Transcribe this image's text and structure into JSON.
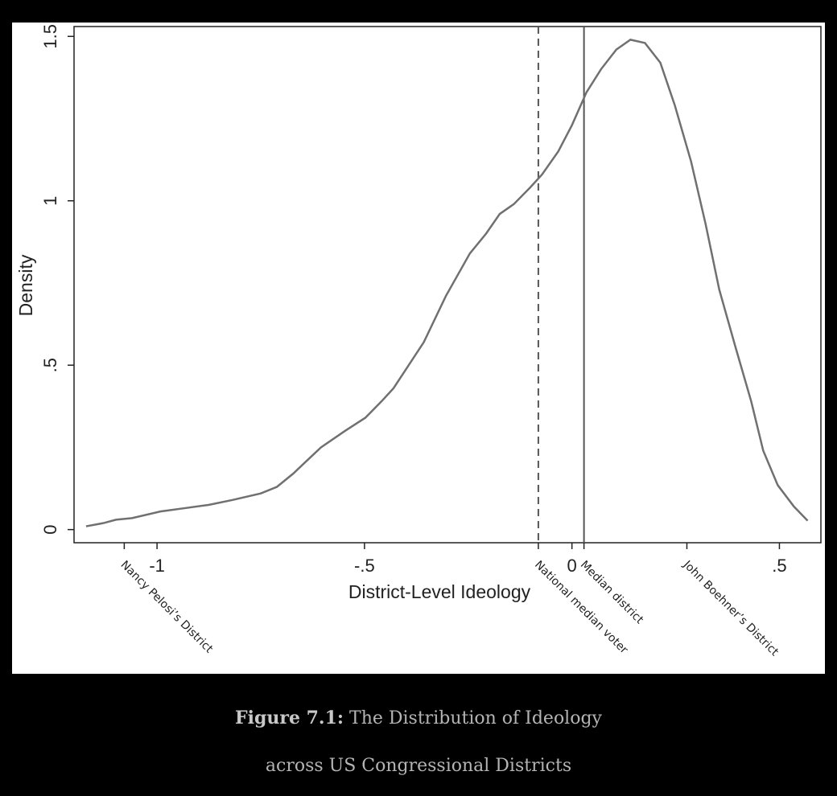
{
  "chart_data": {
    "type": "line",
    "xlabel": "District-Level Ideology",
    "ylabel": "Density",
    "x": [
      -1.171,
      -1.128,
      -1.099,
      -1.06,
      -0.992,
      -0.934,
      -0.876,
      -0.818,
      -0.75,
      -0.711,
      -0.672,
      -0.605,
      -0.547,
      -0.498,
      -0.459,
      -0.43,
      -0.357,
      -0.304,
      -0.246,
      -0.207,
      -0.174,
      -0.14,
      -0.101,
      -0.072,
      -0.033,
      0,
      0.035,
      0.07,
      0.107,
      0.141,
      0.176,
      0.213,
      0.248,
      0.287,
      0.322,
      0.355,
      0.393,
      0.432,
      0.461,
      0.496,
      0.535,
      0.568
    ],
    "values": [
      0.01,
      0.02,
      0.03,
      0.035,
      0.055,
      0.065,
      0.075,
      0.09,
      0.11,
      0.13,
      0.17,
      0.25,
      0.3,
      0.34,
      0.39,
      0.43,
      0.57,
      0.71,
      0.84,
      0.9,
      0.96,
      0.99,
      1.04,
      1.08,
      1.15,
      1.23,
      1.33,
      1.4,
      1.46,
      1.49,
      1.48,
      1.42,
      1.29,
      1.12,
      0.93,
      0.73,
      0.56,
      0.39,
      0.24,
      0.135,
      0.07,
      0.027
    ],
    "color": "#707070",
    "xlim": [
      -1.2,
      0.6
    ],
    "xticks": [
      -1,
      {
        "value": -0.5,
        "label": "-.5"
      },
      0,
      {
        "value": 0.5,
        "label": ".5"
      }
    ],
    "ylim": [
      -0.04,
      1.53
    ],
    "yticks": [
      0,
      {
        "value": 0.5,
        "label": ".5"
      },
      1,
      1.5
    ],
    "annotations": [
      {
        "x": -1.079,
        "label": "Nancy Pelosi’s District"
      },
      {
        "x": -0.081,
        "label": "National median voter",
        "line": "dashed"
      },
      {
        "x": 0.029,
        "label": "Median district",
        "line": "solid"
      },
      {
        "x": 0.277,
        "label": "John Boehner’s District"
      }
    ]
  },
  "caption": {
    "label": "Figure 7.1:",
    "lines": [
      "The Distribution of Ideology",
      "across US Congressional Districts"
    ]
  }
}
